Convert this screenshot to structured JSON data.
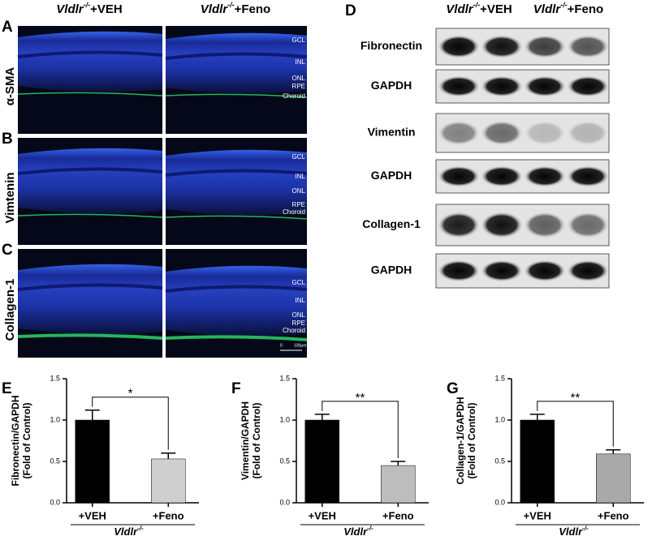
{
  "figure": {
    "panel_letters": [
      "A",
      "B",
      "C",
      "D",
      "E",
      "F",
      "G"
    ],
    "microscopy": {
      "columns": [
        {
          "gene": "Vldlr",
          "sup": "-/-",
          "treatment": "+VEH"
        },
        {
          "gene": "Vldlr",
          "sup": "-/-",
          "treatment": "+Feno"
        }
      ],
      "rows": [
        "α-SMA",
        "Vimtenin",
        "Collagen-1"
      ],
      "layers": [
        "GCL",
        "INL",
        "ONL",
        "RPE",
        "Choroid"
      ],
      "scale_bar": [
        "0",
        "100μm"
      ]
    },
    "blot": {
      "columns": [
        {
          "gene": "Vldlr",
          "sup": "-/-",
          "treatment": "+VEH"
        },
        {
          "gene": "Vldlr",
          "sup": "-/-",
          "treatment": "+Feno"
        }
      ],
      "rows": [
        "Fibronectin",
        "GAPDH",
        "Vimentin",
        "GAPDH",
        "Collagen-1",
        "GAPDH"
      ]
    }
  },
  "chart_data": [
    {
      "type": "bar",
      "y_label": [
        "Fibronectin/GAPDH",
        "(Fold of Control)"
      ],
      "categories": [
        "+VEH",
        "+Feno"
      ],
      "x_label": {
        "text": "Vldlr",
        "sup": "-/-"
      },
      "series": [
        {
          "values": [
            1,
            0.53
          ],
          "errors": [
            0.12,
            0.07
          ],
          "colors": [
            "#000000",
            "#cfcfcf"
          ]
        }
      ],
      "ylim": [
        0,
        1.5
      ],
      "yticks": [
        {
          "value": 0,
          "label": "0.0"
        },
        {
          "value": 0.5,
          "label": "0.5"
        },
        {
          "value": 1,
          "label": "1.0"
        },
        {
          "value": 1.5,
          "label": "1.5"
        }
      ],
      "significance": "*"
    },
    {
      "type": "bar",
      "y_label": [
        "Vimentin/GAPDH",
        "(Fold of Control)"
      ],
      "categories": [
        "+VEH",
        "+Feno"
      ],
      "x_label": {
        "text": "Vldlr",
        "sup": "-/-"
      },
      "series": [
        {
          "values": [
            1,
            0.45
          ],
          "errors": [
            0.07,
            0.05
          ],
          "colors": [
            "#000000",
            "#bdbdbd"
          ]
        }
      ],
      "ylim": [
        0,
        1.5
      ],
      "yticks": [
        {
          "value": 0,
          "label": "0.0"
        },
        {
          "value": 0.5,
          "label": "0.5"
        },
        {
          "value": 1,
          "label": "1.0"
        },
        {
          "value": 1.5,
          "label": "1.5"
        }
      ],
      "significance": "**"
    },
    {
      "type": "bar",
      "y_label": [
        "Collagen-1/GAPDH",
        "(Fold of Control)"
      ],
      "categories": [
        "+VEH",
        "+Feno"
      ],
      "x_label": {
        "text": "Vldlr",
        "sup": "-/-"
      },
      "series": [
        {
          "values": [
            1,
            0.59
          ],
          "errors": [
            0.07,
            0.05
          ],
          "colors": [
            "#000000",
            "#a9a9a9"
          ]
        }
      ],
      "ylim": [
        0,
        1.5
      ],
      "yticks": [
        {
          "value": 0,
          "label": "0.0"
        },
        {
          "value": 0.5,
          "label": "0.5"
        },
        {
          "value": 1,
          "label": "1.0"
        },
        {
          "value": 1.5,
          "label": "1.5"
        }
      ],
      "significance": "**"
    }
  ]
}
